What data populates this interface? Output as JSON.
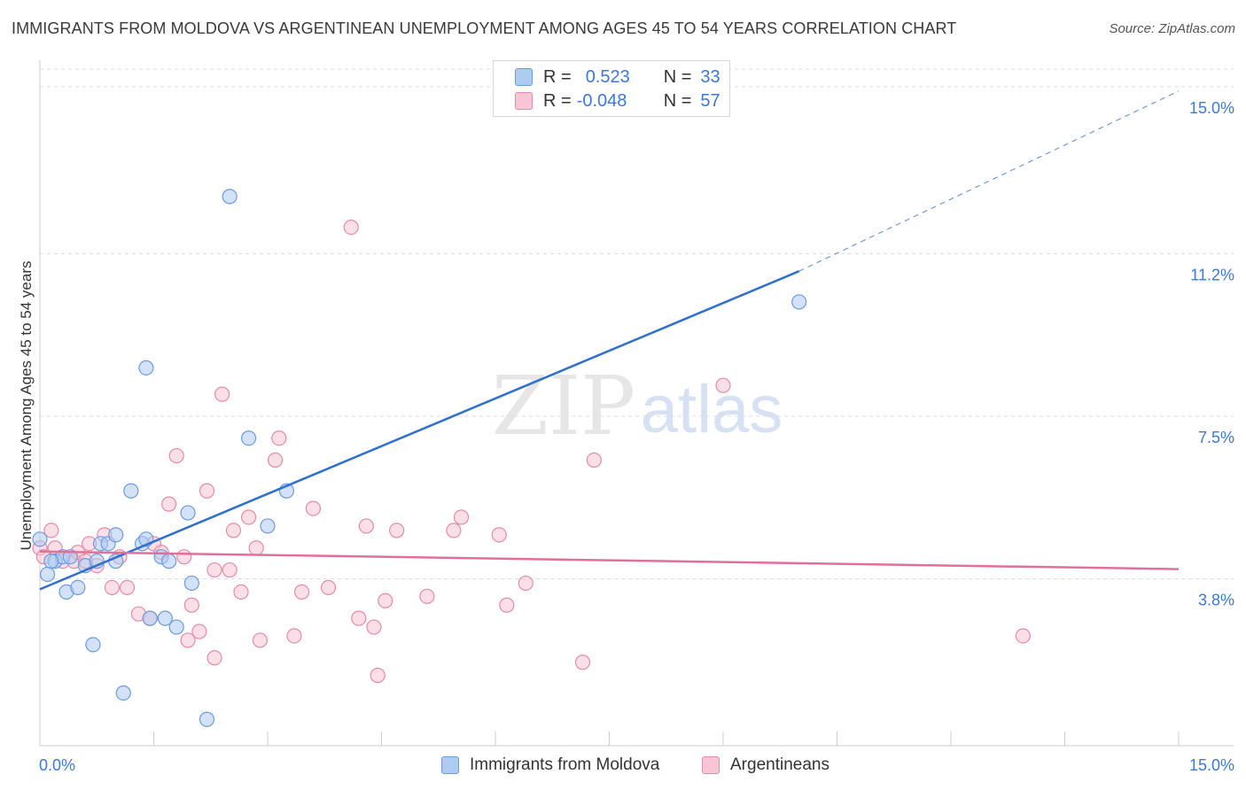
{
  "header": {
    "title": "IMMIGRANTS FROM MOLDOVA VS ARGENTINEAN UNEMPLOYMENT AMONG AGES 45 TO 54 YEARS CORRELATION CHART",
    "source": "Source: ZipAtlas.com"
  },
  "watermark": {
    "zip": "ZIP",
    "atlas": "atlas"
  },
  "legend": {
    "moldova": {
      "r_label": "R =",
      "r_value": "0.523",
      "n_label": "N =",
      "n_value": "33"
    },
    "argentineans": {
      "r_label": "R =",
      "r_value": "-0.048",
      "n_label": "N =",
      "n_value": "57"
    }
  },
  "bottom_legend": {
    "moldova": "Immigrants from Moldova",
    "argentineans": "Argentineans"
  },
  "colors": {
    "moldova_fill": "#aecbf2",
    "moldova_stroke": "#6a9be0",
    "moldova_line": "#2f6fd0",
    "argentine_fill": "#f7c5d4",
    "argentine_stroke": "#e68aa8",
    "argentine_line": "#e0709a",
    "tick_label": "#3c78d8",
    "grid": "#dddddd"
  },
  "chart_data": {
    "type": "scatter",
    "title": "IMMIGRANTS FROM MOLDOVA VS ARGENTINEAN UNEMPLOYMENT AMONG AGES 45 TO 54 YEARS CORRELATION CHART",
    "xlabel": "",
    "ylabel": "Unemployment Among Ages 45 to 54 years",
    "xlim": [
      0,
      15
    ],
    "ylim": [
      0,
      15.4
    ],
    "x_tick_labels": [
      "0.0%",
      "15.0%"
    ],
    "y_ticks": [
      3.8,
      7.5,
      11.2,
      15.0
    ],
    "y_tick_labels": [
      "3.8%",
      "7.5%",
      "11.2%",
      "15.0%"
    ],
    "grid": true,
    "series": [
      {
        "name": "Immigrants from Moldova",
        "points": [
          [
            0.0,
            4.7
          ],
          [
            0.1,
            3.9
          ],
          [
            0.2,
            4.2
          ],
          [
            0.3,
            4.3
          ],
          [
            0.35,
            3.5
          ],
          [
            0.4,
            4.3
          ],
          [
            0.5,
            3.6
          ],
          [
            0.6,
            4.1
          ],
          [
            0.7,
            2.3
          ],
          [
            0.75,
            4.2
          ],
          [
            0.8,
            4.6
          ],
          [
            0.9,
            4.6
          ],
          [
            1.0,
            4.2
          ],
          [
            1.0,
            4.8
          ],
          [
            1.1,
            1.2
          ],
          [
            1.2,
            5.8
          ],
          [
            1.35,
            4.6
          ],
          [
            1.4,
            4.7
          ],
          [
            1.4,
            8.6
          ],
          [
            1.45,
            2.9
          ],
          [
            1.65,
            2.9
          ],
          [
            1.6,
            4.3
          ],
          [
            1.7,
            4.2
          ],
          [
            1.8,
            2.7
          ],
          [
            1.95,
            5.3
          ],
          [
            2.0,
            3.7
          ],
          [
            2.2,
            0.6
          ],
          [
            2.5,
            12.5
          ],
          [
            2.75,
            7.0
          ],
          [
            3.0,
            5.0
          ],
          [
            3.25,
            5.8
          ],
          [
            10.0,
            10.1
          ],
          [
            0.15,
            4.2
          ]
        ]
      },
      {
        "name": "Argentineans",
        "points": [
          [
            0.0,
            4.5
          ],
          [
            0.05,
            4.3
          ],
          [
            0.15,
            4.9
          ],
          [
            0.2,
            4.5
          ],
          [
            0.3,
            4.2
          ],
          [
            0.45,
            4.2
          ],
          [
            0.5,
            4.4
          ],
          [
            0.6,
            4.2
          ],
          [
            0.65,
            4.6
          ],
          [
            0.75,
            4.1
          ],
          [
            0.85,
            4.8
          ],
          [
            0.95,
            3.6
          ],
          [
            1.05,
            4.3
          ],
          [
            1.15,
            3.6
          ],
          [
            1.3,
            3.0
          ],
          [
            1.45,
            2.9
          ],
          [
            1.5,
            4.6
          ],
          [
            1.6,
            4.4
          ],
          [
            1.7,
            5.5
          ],
          [
            1.8,
            6.6
          ],
          [
            1.9,
            4.3
          ],
          [
            1.95,
            2.4
          ],
          [
            2.0,
            3.2
          ],
          [
            2.1,
            2.6
          ],
          [
            2.2,
            5.8
          ],
          [
            2.3,
            4.0
          ],
          [
            2.3,
            2.0
          ],
          [
            2.4,
            8.0
          ],
          [
            2.5,
            4.0
          ],
          [
            2.55,
            4.9
          ],
          [
            2.65,
            3.5
          ],
          [
            2.75,
            5.2
          ],
          [
            2.85,
            4.5
          ],
          [
            2.9,
            2.4
          ],
          [
            3.1,
            6.5
          ],
          [
            3.15,
            7.0
          ],
          [
            3.35,
            2.5
          ],
          [
            3.45,
            3.5
          ],
          [
            3.6,
            5.4
          ],
          [
            3.8,
            3.6
          ],
          [
            4.1,
            11.8
          ],
          [
            4.2,
            2.9
          ],
          [
            4.3,
            5.0
          ],
          [
            4.4,
            2.7
          ],
          [
            4.45,
            1.6
          ],
          [
            4.55,
            3.3
          ],
          [
            4.7,
            4.9
          ],
          [
            5.1,
            3.4
          ],
          [
            5.45,
            4.9
          ],
          [
            5.55,
            5.2
          ],
          [
            6.05,
            4.8
          ],
          [
            6.15,
            3.2
          ],
          [
            6.4,
            3.7
          ],
          [
            7.15,
            1.9
          ],
          [
            7.3,
            6.5
          ],
          [
            9.0,
            8.2
          ],
          [
            12.95,
            2.5
          ]
        ]
      }
    ],
    "trendlines": [
      {
        "series": "Immigrants from Moldova",
        "x_start": 0.0,
        "y_start": 3.56,
        "x_solid_end": 10.0,
        "y_solid_end": 10.8,
        "x_dashed_end": 15.0,
        "y_dashed_end": 14.9
      },
      {
        "series": "Argentineans",
        "x_start": 0.0,
        "y_start": 4.42,
        "x_end": 15.0,
        "y_end": 4.02
      }
    ]
  }
}
